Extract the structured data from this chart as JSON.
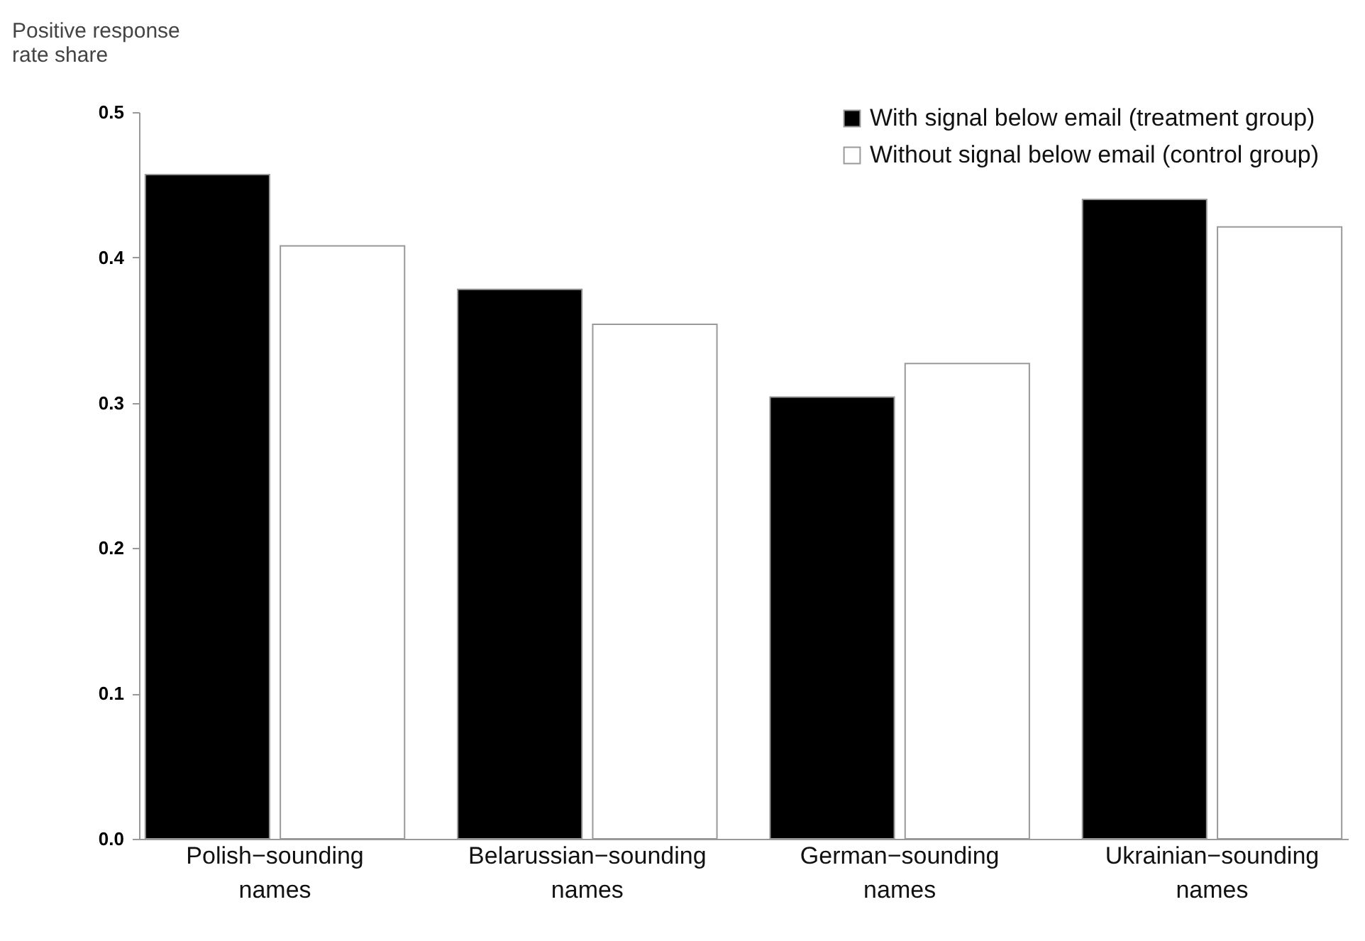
{
  "chart_data": {
    "type": "bar",
    "ylabel": "Positive response rate share",
    "categories": [
      "Polish−sounding names",
      "Belarussian−sounding names",
      "German−sounding names",
      "Ukrainian−sounding names"
    ],
    "series": [
      {
        "name": "With signal below email (treatment group)",
        "color": "#000000",
        "values": [
          0.457,
          0.378,
          0.304,
          0.44
        ]
      },
      {
        "name": "Without signal below email (control group)",
        "color": "#ffffff",
        "values": [
          0.408,
          0.354,
          0.327,
          0.421
        ]
      }
    ],
    "ylim": [
      0,
      0.5
    ],
    "yticks": [
      {
        "value": 0,
        "label": "0.0"
      },
      0.1,
      0.2,
      0.3,
      0.4,
      0.5
    ],
    "grid": false,
    "legend": "top right"
  }
}
